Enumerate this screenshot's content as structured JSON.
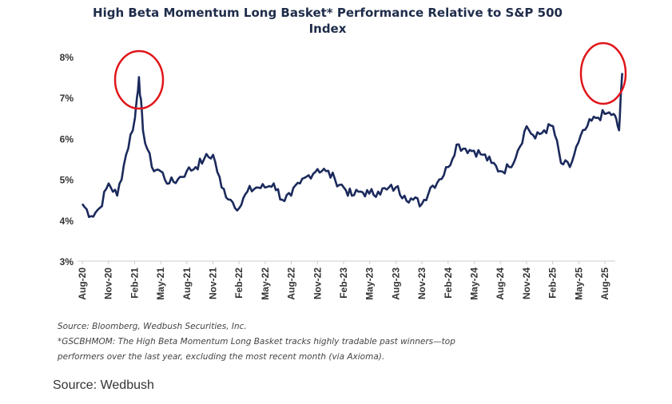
{
  "chart_data": {
    "type": "line",
    "title": "High Beta Momentum Long Basket* Performance Relative to S&P 500 Index",
    "xlabel": "",
    "ylabel": "",
    "ylim": [
      3,
      8
    ],
    "yticks": [
      "3%",
      "4%",
      "5%",
      "6%",
      "7%",
      "8%"
    ],
    "xticks": [
      "Aug-20",
      "Nov-20",
      "Feb-21",
      "May-21",
      "Aug-21",
      "Nov-21",
      "Feb-22",
      "May-22",
      "Aug-22",
      "Nov-22",
      "Feb-23",
      "May-23",
      "Aug-23",
      "Nov-23",
      "Feb-24",
      "May-24",
      "Aug-24",
      "Nov-24",
      "Feb-25",
      "May-25",
      "Aug-25"
    ],
    "grid": false,
    "line_color": "#1b2a5c",
    "annotation_color": "#e0161b",
    "annotations": [
      "circle around Feb-21 peak",
      "circle around latest high"
    ],
    "x": [
      "2020-08",
      "2020-09",
      "2020-10",
      "2020-11",
      "2020-12",
      "2021-01",
      "2021-02",
      "2021-02-15",
      "2021-03",
      "2021-04",
      "2021-05",
      "2021-06",
      "2021-07",
      "2021-08",
      "2021-09",
      "2021-10",
      "2021-11",
      "2021-12",
      "2022-01",
      "2022-02",
      "2022-03",
      "2022-04",
      "2022-05",
      "2022-06",
      "2022-07",
      "2022-08",
      "2022-09",
      "2022-10",
      "2022-11",
      "2022-12",
      "2023-01",
      "2023-02",
      "2023-03",
      "2023-04",
      "2023-05",
      "2023-06",
      "2023-07",
      "2023-08",
      "2023-09",
      "2023-10",
      "2023-11",
      "2023-12",
      "2024-01",
      "2024-02",
      "2024-03",
      "2024-04",
      "2024-05",
      "2024-06",
      "2024-07",
      "2024-08",
      "2024-09",
      "2024-10",
      "2024-11",
      "2024-12",
      "2025-01",
      "2025-02",
      "2025-03",
      "2025-04",
      "2025-05",
      "2025-06",
      "2025-07",
      "2025-08",
      "2025-09",
      "2025-09-20",
      "2025-10"
    ],
    "values": [
      4.4,
      4.1,
      4.3,
      4.9,
      4.6,
      5.6,
      6.5,
      7.5,
      6.2,
      5.3,
      5.2,
      4.9,
      5.0,
      5.2,
      5.3,
      5.5,
      5.6,
      4.8,
      4.5,
      4.3,
      4.7,
      4.8,
      4.8,
      4.9,
      4.5,
      4.6,
      4.9,
      5.1,
      5.25,
      5.2,
      5.0,
      4.8,
      4.6,
      4.7,
      4.65,
      4.7,
      4.75,
      4.8,
      4.6,
      4.5,
      4.4,
      4.8,
      5.0,
      5.3,
      5.85,
      5.75,
      5.7,
      5.6,
      5.4,
      5.2,
      5.3,
      5.7,
      6.3,
      6.0,
      6.2,
      6.3,
      5.4,
      5.3,
      5.9,
      6.3,
      6.5,
      6.6,
      6.6,
      6.2,
      7.6
    ]
  },
  "notes": {
    "source": "Source: Bloomberg, Wedbush Securities, Inc.",
    "footnote_1": "*GSCBHMOM: The High Beta Momentum Long Basket tracks highly tradable past winners—top",
    "footnote_2": "performers over the last year, excluding the most recent month (via Axioma)."
  },
  "caption": "Source: Wedbush"
}
